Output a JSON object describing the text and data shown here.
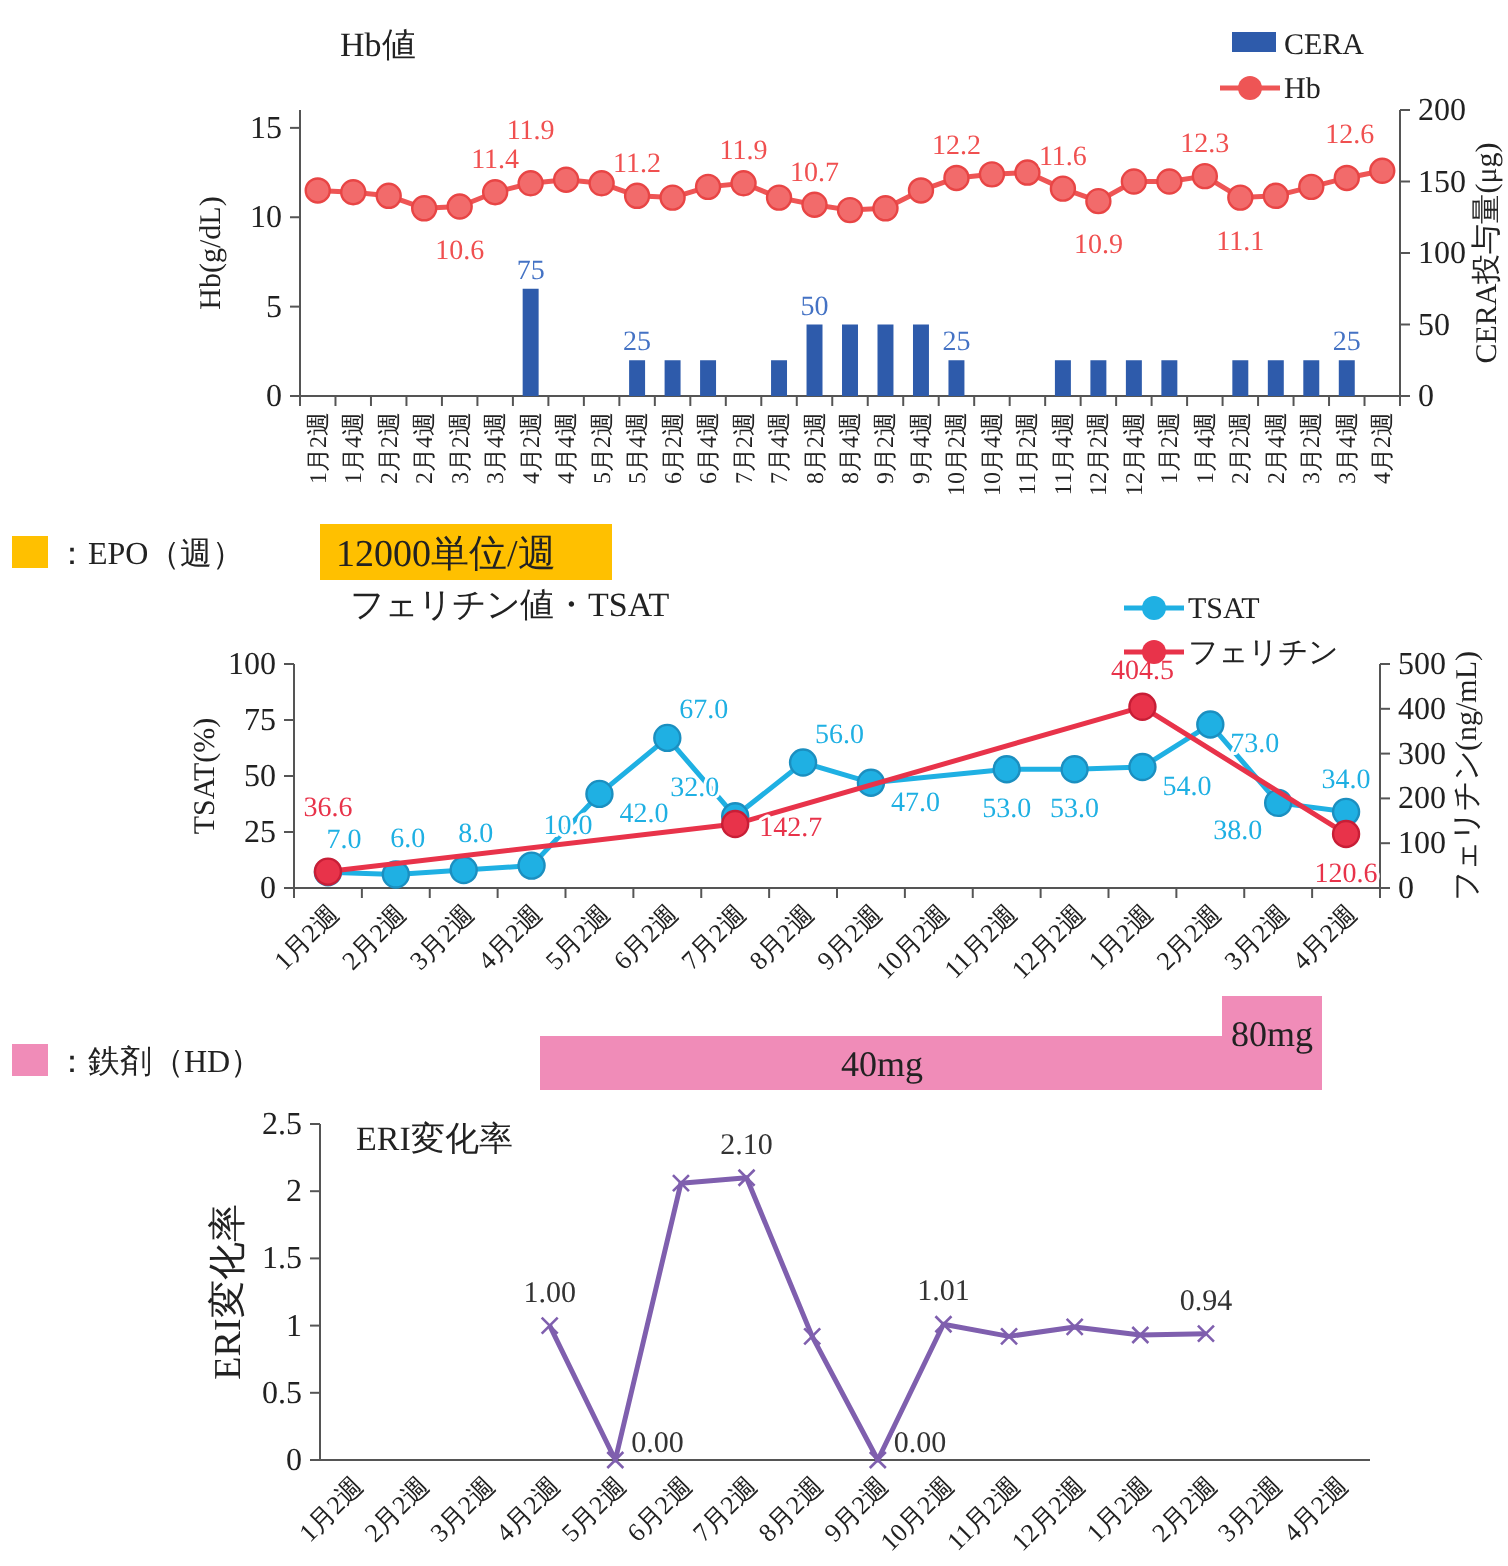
{
  "chart_data": [
    {
      "type": "bar",
      "title": "Hb値",
      "ylabel": "Hb(g/dL)",
      "y2label": "CERA投与量(μg)",
      "legend": "top right",
      "categories": [
        "1月2週",
        "1月4週",
        "2月2週",
        "2月4週",
        "3月2週",
        "3月4週",
        "4月2週",
        "4月4週",
        "5月2週",
        "5月4週",
        "6月2週",
        "6月4週",
        "7月2週",
        "7月4週",
        "8月2週",
        "8月4週",
        "9月2週",
        "9月4週",
        "10月2週",
        "10月4週",
        "11月2週",
        "11月4週",
        "12月2週",
        "12月4週",
        "1月2週",
        "1月4週",
        "2月2週",
        "2月4週",
        "3月2週",
        "3月4週",
        "4月2週"
      ],
      "ylim": [
        0,
        16
      ],
      "yticks": [
        0,
        5,
        10,
        15
      ],
      "y2lim": [
        0,
        200
      ],
      "y2ticks": [
        0,
        50,
        100,
        150,
        200
      ],
      "series": [
        {
          "name": "CERA",
          "type": "bar",
          "axis": "y2",
          "color": "#2e5bab",
          "values": [
            null,
            null,
            null,
            null,
            null,
            null,
            75,
            null,
            null,
            25,
            25,
            25,
            null,
            25,
            50,
            50,
            50,
            50,
            25,
            null,
            null,
            25,
            25,
            25,
            25,
            null,
            25,
            25,
            25,
            25,
            null
          ],
          "value_labels": [
            null,
            null,
            null,
            null,
            null,
            null,
            "75",
            null,
            null,
            "25",
            null,
            null,
            null,
            null,
            "50",
            null,
            null,
            null,
            "25",
            null,
            null,
            null,
            null,
            null,
            null,
            null,
            null,
            null,
            null,
            "25",
            null
          ]
        },
        {
          "name": "Hb",
          "type": "line",
          "marker": "circle",
          "color": "#ee5555",
          "values": [
            11.5,
            11.4,
            11.2,
            10.5,
            10.6,
            11.4,
            11.9,
            12.1,
            11.9,
            11.2,
            11.1,
            11.7,
            11.9,
            11.1,
            10.7,
            10.4,
            10.5,
            11.5,
            12.2,
            12.4,
            12.5,
            11.6,
            10.9,
            12.0,
            12.0,
            12.3,
            11.1,
            11.2,
            11.7,
            12.2,
            12.6
          ],
          "value_labels": [
            null,
            null,
            null,
            null,
            "10.6",
            "11.4",
            "11.9",
            null,
            null,
            "11.2",
            null,
            null,
            "11.9",
            null,
            "10.7",
            null,
            null,
            null,
            "12.2",
            null,
            null,
            "11.6",
            "10.9",
            null,
            null,
            "12.3",
            "11.1",
            null,
            null,
            null,
            "12.6"
          ]
        }
      ],
      "annotations": [
        "：EPO（週）",
        "12000単位/週"
      ]
    },
    {
      "type": "line",
      "title": "フェリチン値・TSAT",
      "ylabel": "TSAT(%)",
      "y2label": "フェリチン(ng/mL)",
      "legend": "top right",
      "marker": "circle",
      "categories": [
        "1月2週",
        "2月2週",
        "3月2週",
        "4月2週",
        "5月2週",
        "6月2週",
        "7月2週",
        "8月2週",
        "9月2週",
        "10月2週",
        "11月2週",
        "12月2週",
        "1月2週",
        "2月2週",
        "3月2週",
        "4月2週"
      ],
      "ylim": [
        0,
        100
      ],
      "yticks": [
        0,
        25,
        50,
        75,
        100
      ],
      "y2lim": [
        0,
        500
      ],
      "y2ticks": [
        0,
        100,
        200,
        300,
        400,
        500
      ],
      "series": [
        {
          "name": "TSAT",
          "color": "#1fb0e3",
          "values": [
            7.0,
            6.0,
            8.0,
            10.0,
            42.0,
            67.0,
            32.0,
            56.0,
            47.0,
            null,
            53.0,
            53.0,
            54.0,
            73.0,
            38.0,
            34.0
          ],
          "value_labels": [
            "7.0",
            "6.0",
            "8.0",
            "10.0",
            "42.0",
            "67.0",
            "32.0",
            "56.0",
            "47.0",
            null,
            "53.0",
            "53.0",
            "54.0",
            "73.0",
            "38.0",
            "34.0"
          ]
        },
        {
          "name": "フェリチン",
          "axis": "y2",
          "color": "#e8334a",
          "values": [
            36.6,
            null,
            null,
            null,
            null,
            null,
            142.7,
            null,
            null,
            null,
            null,
            null,
            404.5,
            null,
            null,
            120.6
          ],
          "value_labels": [
            "36.6",
            null,
            null,
            null,
            null,
            null,
            "142.7",
            null,
            null,
            null,
            null,
            null,
            "404.5",
            null,
            null,
            "120.6"
          ]
        }
      ],
      "annotations": [
        "：鉄剤（HD）",
        "40mg",
        "80mg"
      ]
    },
    {
      "type": "line",
      "title": "ERI変化率",
      "ylabel": "ERI変化率",
      "marker": "cross",
      "categories": [
        "1月2週",
        "2月2週",
        "3月2週",
        "4月2週",
        "5月2週",
        "6月2週",
        "7月2週",
        "8月2週",
        "9月2週",
        "10月2週",
        "11月2週",
        "12月2週",
        "1月2週",
        "2月2週",
        "3月2週",
        "4月2週"
      ],
      "ylim": [
        0,
        2.5
      ],
      "yticks": [
        0,
        0.5,
        1,
        1.5,
        2,
        2.5
      ],
      "series": [
        {
          "color": "#7f5fae",
          "values": [
            null,
            null,
            null,
            1.0,
            0.0,
            2.06,
            2.1,
            0.92,
            0.0,
            1.01,
            0.92,
            0.99,
            0.93,
            0.94,
            null,
            null
          ],
          "value_labels": [
            null,
            null,
            null,
            "1.00",
            "0.00",
            null,
            "2.10",
            null,
            "0.00",
            "1.01",
            null,
            null,
            null,
            "0.94",
            null,
            null
          ]
        }
      ]
    }
  ]
}
